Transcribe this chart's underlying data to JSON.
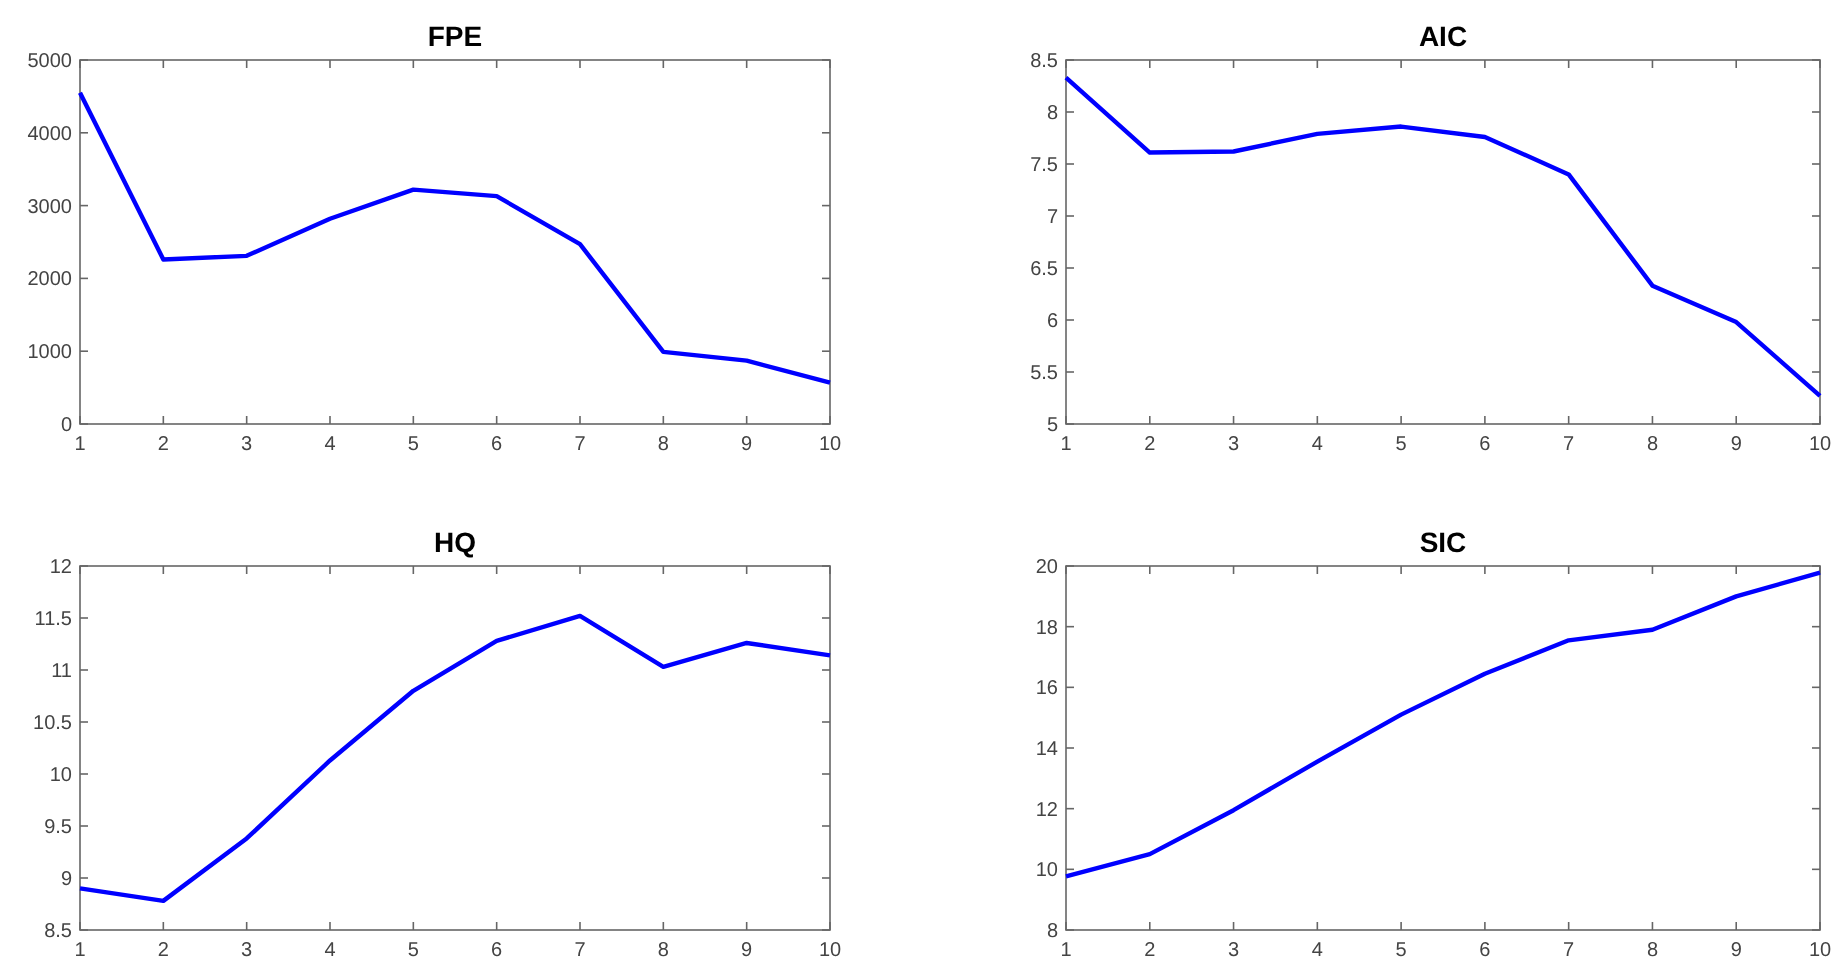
{
  "chart_data": [
    {
      "type": "line",
      "title": "FPE",
      "x": [
        1,
        2,
        3,
        4,
        5,
        6,
        7,
        8,
        9,
        10
      ],
      "xlim": [
        1,
        10
      ],
      "xticks": [
        1,
        2,
        3,
        4,
        5,
        6,
        7,
        8,
        9,
        10
      ],
      "ylim": [
        0,
        5000
      ],
      "yticks": [
        0,
        1000,
        2000,
        3000,
        4000,
        5000
      ],
      "grid": false,
      "series": [
        {
          "color": "#0000ff",
          "values": [
            4550,
            2260,
            2310,
            2820,
            3220,
            3130,
            2470,
            990,
            870,
            570
          ]
        }
      ]
    },
    {
      "type": "line",
      "title": "AIC",
      "x": [
        1,
        2,
        3,
        4,
        5,
        6,
        7,
        8,
        9,
        10
      ],
      "xlim": [
        1,
        10
      ],
      "xticks": [
        1,
        2,
        3,
        4,
        5,
        6,
        7,
        8,
        9,
        10
      ],
      "ylim": [
        5,
        8.5
      ],
      "yticks": [
        5,
        5.5,
        6,
        6.5,
        7,
        7.5,
        8,
        8.5
      ],
      "grid": false,
      "series": [
        {
          "color": "#0000ff",
          "values": [
            8.33,
            7.61,
            7.62,
            7.79,
            7.86,
            7.76,
            7.4,
            6.33,
            5.98,
            5.27
          ]
        }
      ]
    },
    {
      "type": "line",
      "title": "HQ",
      "x": [
        1,
        2,
        3,
        4,
        5,
        6,
        7,
        8,
        9,
        10
      ],
      "xlim": [
        1,
        10
      ],
      "xticks": [
        1,
        2,
        3,
        4,
        5,
        6,
        7,
        8,
        9,
        10
      ],
      "ylim": [
        8.5,
        12
      ],
      "yticks": [
        8.5,
        9,
        9.5,
        10,
        10.5,
        11,
        11.5,
        12
      ],
      "grid": false,
      "series": [
        {
          "color": "#0000ff",
          "values": [
            8.9,
            8.78,
            9.38,
            10.13,
            10.8,
            11.28,
            11.52,
            11.03,
            11.26,
            11.14
          ]
        }
      ]
    },
    {
      "type": "line",
      "title": "SIC",
      "x": [
        1,
        2,
        3,
        4,
        5,
        6,
        7,
        8,
        9,
        10
      ],
      "xlim": [
        1,
        10
      ],
      "xticks": [
        1,
        2,
        3,
        4,
        5,
        6,
        7,
        8,
        9,
        10
      ],
      "ylim": [
        8,
        20
      ],
      "yticks": [
        8,
        10,
        12,
        14,
        16,
        18,
        20
      ],
      "grid": false,
      "series": [
        {
          "color": "#0000ff",
          "values": [
            9.77,
            10.5,
            11.95,
            13.55,
            15.1,
            16.45,
            17.55,
            17.9,
            19.0,
            19.78
          ]
        }
      ]
    }
  ]
}
